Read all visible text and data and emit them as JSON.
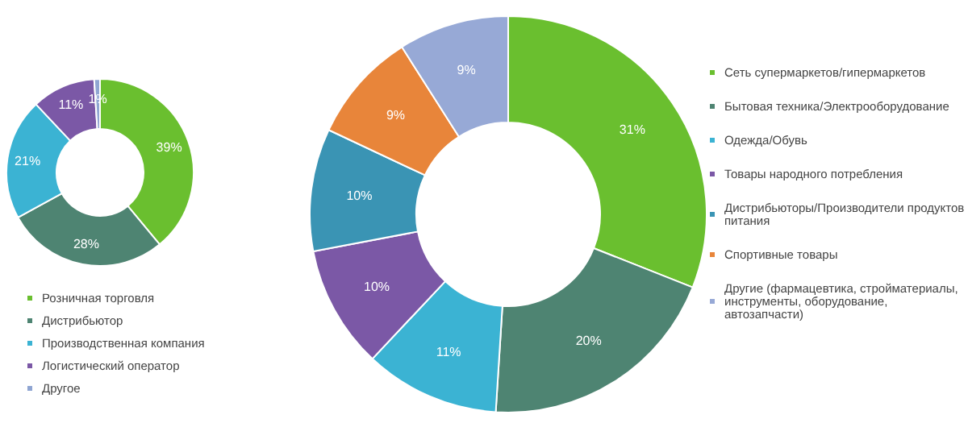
{
  "chart_data": [
    {
      "type": "donut",
      "categories": [
        "Розничная торговля",
        "Дистрибьютор",
        "Производственная компания",
        "Логистический оператор",
        "Другое"
      ],
      "values": [
        39,
        28,
        21,
        11,
        1
      ],
      "colors": [
        "#6abf2f",
        "#4e8472",
        "#3bb3d3",
        "#7b58a6",
        "#8fa5d2"
      ],
      "value_labels": [
        "39%",
        "28%",
        "21%",
        "11%",
        "1%"
      ],
      "legend": "bottom"
    },
    {
      "type": "donut",
      "categories": [
        "Сеть супермаркетов/гипермаркетов",
        "Бытовая техника/Электрооборудование",
        "Одежда/Обувь",
        "Товары народного потребления",
        "Дистрибьюторы/Производители продуктов питания",
        "Спортивные товары",
        "Другие (фармацевтика, стройматериалы, инструменты, оборудование, автозапчасти)"
      ],
      "values": [
        31,
        20,
        11,
        10,
        10,
        9,
        9
      ],
      "colors": [
        "#6abf2f",
        "#4e8472",
        "#3bb3d3",
        "#7b58a6",
        "#3a94b4",
        "#e8853a",
        "#97a9d6"
      ],
      "value_labels": [
        "31%",
        "20%",
        "11%",
        "10%",
        "10%",
        "9%",
        "9%"
      ],
      "legend": "right"
    }
  ]
}
